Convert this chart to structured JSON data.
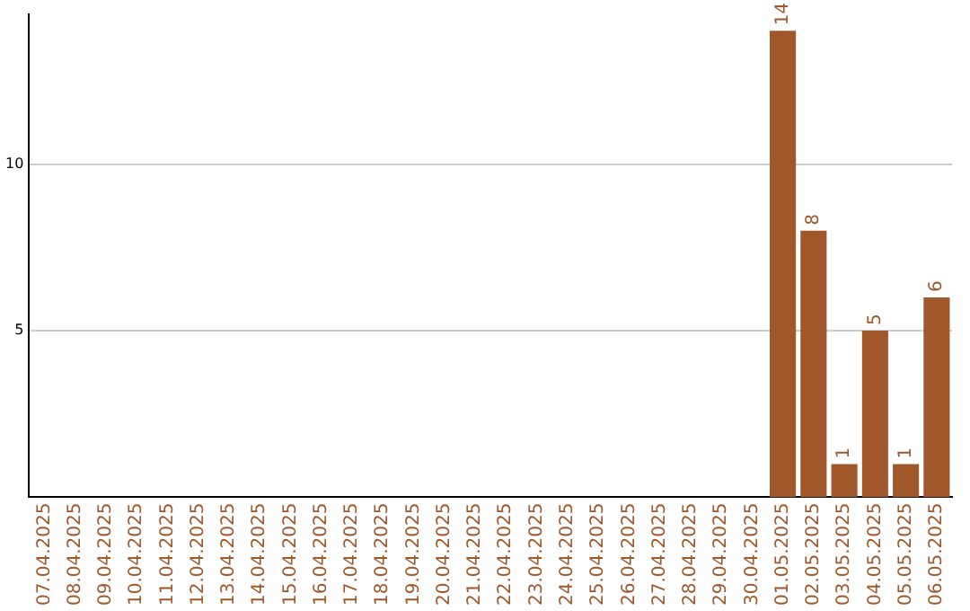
{
  "chart_data": {
    "type": "bar",
    "categories": [
      "07.04.2025",
      "08.04.2025",
      "09.04.2025",
      "10.04.2025",
      "11.04.2025",
      "12.04.2025",
      "13.04.2025",
      "14.04.2025",
      "15.04.2025",
      "16.04.2025",
      "17.04.2025",
      "18.04.2025",
      "19.04.2025",
      "20.04.2025",
      "21.04.2025",
      "22.04.2025",
      "23.04.2025",
      "24.04.2025",
      "25.04.2025",
      "26.04.2025",
      "27.04.2025",
      "28.04.2025",
      "29.04.2025",
      "30.04.2025",
      "01.05.2025",
      "02.05.2025",
      "03.05.2025",
      "04.05.2025",
      "05.05.2025",
      "06.05.2025"
    ],
    "values": [
      0,
      0,
      0,
      0,
      0,
      0,
      0,
      0,
      0,
      0,
      0,
      0,
      0,
      0,
      0,
      0,
      0,
      0,
      0,
      0,
      0,
      0,
      0,
      0,
      14,
      8,
      1,
      5,
      1,
      6
    ],
    "value_labels": [
      null,
      null,
      null,
      null,
      null,
      null,
      null,
      null,
      null,
      null,
      null,
      null,
      null,
      null,
      null,
      null,
      null,
      null,
      null,
      null,
      null,
      null,
      null,
      null,
      "14",
      "8",
      "1",
      "5",
      "1",
      "6"
    ],
    "color": "#a0582a",
    "ylim": [
      0,
      14.5
    ],
    "yticks": [
      5,
      10
    ],
    "grid": "y",
    "legend": false
  }
}
